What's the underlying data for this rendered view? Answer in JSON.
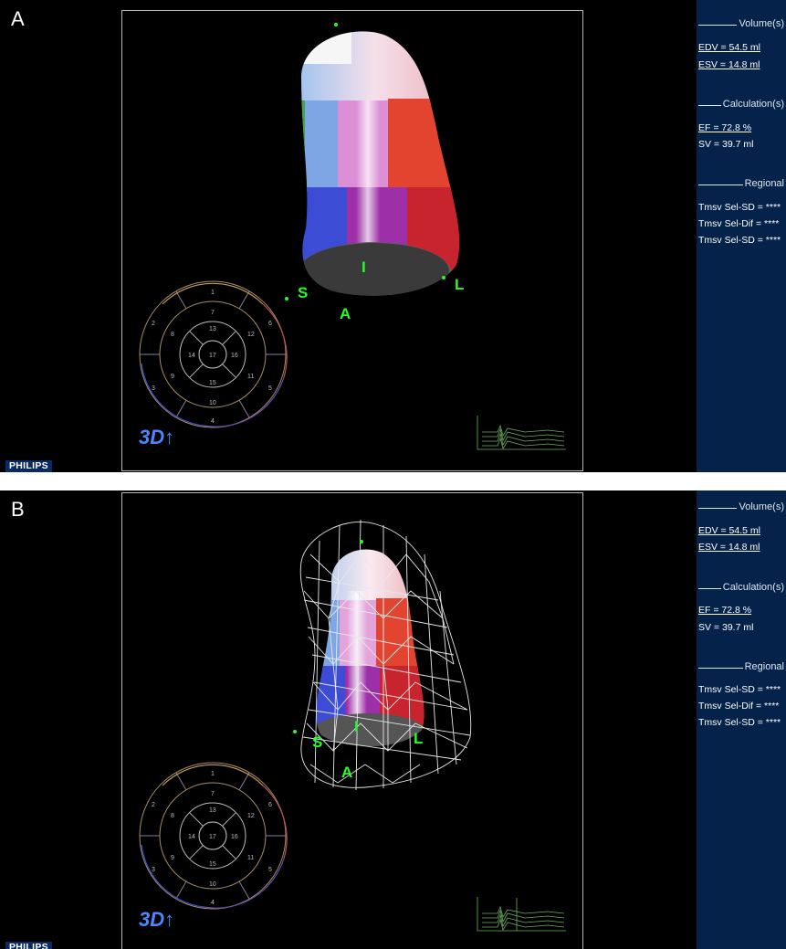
{
  "panels": [
    {
      "letter": "A",
      "sidebar": {
        "volumes_header": "Volume(s)",
        "edv": "EDV = 54.5 ml",
        "esv": "ESV = 14.8 ml",
        "calc_header": "Calculation(s)",
        "ef": "EF = 72.8 %",
        "sv": "SV = 39.7 ml",
        "regional_header": "Regional",
        "r1": "Tmsv Sel-SD = ****",
        "r2": "Tmsv Sel-Dif = ****",
        "r3": "Tmsv Sel-SD = ****"
      },
      "axis_labels": {
        "s": "S",
        "i": "I",
        "l": "L",
        "a": "A"
      },
      "logo": "PHILIPS",
      "brand": "3D↑",
      "segments": [
        "1",
        "2",
        "3",
        "4",
        "5",
        "6",
        "7",
        "8",
        "9",
        "10",
        "11",
        "12",
        "13",
        "14",
        "15",
        "16",
        "17"
      ]
    },
    {
      "letter": "B",
      "sidebar": {
        "volumes_header": "Volume(s)",
        "edv": "EDV = 54.5 ml",
        "esv": "ESV = 14.8 ml",
        "calc_header": "Calculation(s)",
        "ef": "EF = 72.8 %",
        "sv": "SV = 39.7 ml",
        "regional_header": "Regional",
        "r1": "Tmsv Sel-SD = ****",
        "r2": "Tmsv Sel-Dif = ****",
        "r3": "Tmsv Sel-SD = ****"
      },
      "axis_labels": {
        "s": "S",
        "i": "I",
        "l": "L",
        "a": "A"
      },
      "logo": "PHILIPS",
      "brand": "3D↑",
      "segments": [
        "1",
        "2",
        "3",
        "4",
        "5",
        "6",
        "7",
        "8",
        "9",
        "10",
        "11",
        "12",
        "13",
        "14",
        "15",
        "16",
        "17"
      ]
    }
  ],
  "colors": {
    "sidebar_bg": "#04224a",
    "axis_green": "#22ff22",
    "brand_blue": "#4f86ff"
  },
  "icons": {
    "brand": "3d-logo-icon",
    "ecg": "ecg-trace-icon",
    "bullseye": "bullseye-17-segment-icon"
  }
}
